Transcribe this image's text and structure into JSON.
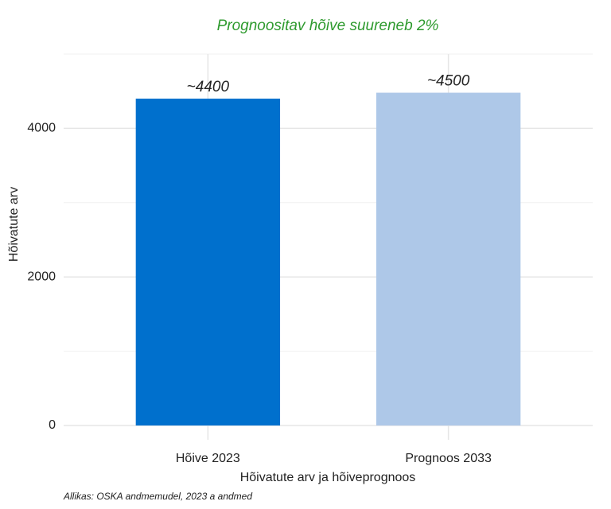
{
  "chart_data": {
    "type": "bar",
    "title": "Prognoositav hõive suureneb 2%",
    "x_label": "Hõivatute arv ja hõiveprognoos",
    "y_label": "Hõivatute arv",
    "caption": "Allikas: OSKA andmemudel, 2023 a andmed",
    "categories": [
      "Hõive 2023",
      "Prognoos 2033"
    ],
    "values": [
      4400,
      4480
    ],
    "value_labels": [
      "~4400",
      "~4500"
    ],
    "colors": [
      "#0070cd",
      "#aec8e8"
    ],
    "ylim": [
      0,
      5000
    ],
    "yticks": [
      0,
      2000,
      4000
    ],
    "y_minor_gridlines": [
      1000,
      3000,
      5000
    ],
    "grid": true
  }
}
